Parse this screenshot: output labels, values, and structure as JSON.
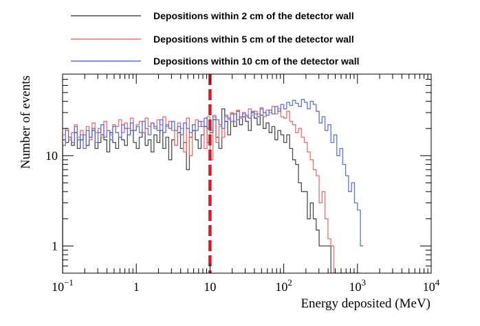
{
  "chart_data": {
    "type": "histogram",
    "title": "",
    "xlabel": "Energy deposited (MeV)",
    "ylabel": "Number of events",
    "xscale": "log",
    "yscale": "log",
    "xlim": [
      0.1,
      10000
    ],
    "ylim": [
      0.5,
      80
    ],
    "grid": false,
    "legend_position": "top",
    "x_ticks": [
      {
        "base": "10",
        "exp": "−1",
        "value": 0.1
      },
      {
        "base": "1",
        "exp": "",
        "value": 1
      },
      {
        "base": "10",
        "exp": "",
        "value": 10
      },
      {
        "base": "10",
        "exp": "2",
        "value": 100
      },
      {
        "base": "10",
        "exp": "3",
        "value": 1000
      },
      {
        "base": "10",
        "exp": "4",
        "value": 10000
      }
    ],
    "y_ticks": [
      {
        "label": "1",
        "value": 1
      },
      {
        "label": "10",
        "value": 10
      }
    ],
    "threshold_line": {
      "x": 10,
      "color": "#e8141e",
      "style": "dashed"
    },
    "bins_per_decade": 25,
    "bin_start_log10": -1,
    "series": [
      {
        "name": "Depositions within 2 cm of the detector wall",
        "color": "#4a4a4a",
        "counts": [
          15,
          14,
          16,
          13,
          18,
          12,
          15,
          17,
          13,
          16,
          19,
          12,
          14,
          17,
          15,
          11,
          18,
          14,
          12,
          16,
          15,
          13,
          17,
          19,
          14,
          12,
          16,
          18,
          13,
          15,
          11,
          17,
          14,
          19,
          12,
          16,
          9,
          15,
          13,
          18,
          12,
          14,
          7,
          16,
          19,
          15,
          12,
          17,
          21,
          14,
          18,
          25,
          16,
          12,
          33,
          24,
          17,
          29,
          21,
          31,
          22,
          27,
          24,
          19,
          30,
          26,
          22,
          28,
          20,
          23,
          18,
          21,
          15,
          19,
          17,
          14,
          17,
          12,
          9,
          8,
          5,
          4,
          4,
          2,
          3,
          2,
          1.5,
          1,
          1,
          1,
          1,
          0.5,
          0.5,
          0.5,
          0.5,
          0.5,
          0.5,
          0.5,
          0.5,
          0.5,
          0.5
        ]
      },
      {
        "name": "Depositions within 5 cm of the detector wall",
        "color": "#f06b6b",
        "counts": [
          17,
          20,
          15,
          18,
          22,
          16,
          19,
          17,
          21,
          15,
          23,
          18,
          20,
          16,
          24,
          19,
          17,
          22,
          21,
          25,
          18,
          23,
          20,
          26,
          19,
          22,
          24,
          18,
          26,
          21,
          23,
          20,
          25,
          22,
          27,
          21,
          24,
          19,
          13,
          23,
          20,
          11,
          26,
          10,
          22,
          25,
          21,
          24,
          12,
          27,
          9,
          28,
          14,
          21,
          16,
          27,
          25,
          30,
          24,
          32,
          26,
          29,
          27,
          33,
          28,
          31,
          29,
          34,
          27,
          32,
          30,
          35,
          29,
          33,
          27,
          26,
          31,
          24,
          22,
          18,
          20,
          16,
          14,
          11,
          9,
          7,
          6,
          3,
          4,
          2,
          1.2,
          1,
          0.5,
          0.5,
          0.5,
          0.5,
          0.5,
          0.5,
          0.5,
          0.5
        ]
      },
      {
        "name": "Depositions within 10 cm of the detector wall",
        "color": "#5b6fe6",
        "counts": [
          13,
          19,
          16,
          14,
          21,
          15,
          17,
          12,
          19,
          16,
          20,
          14,
          18,
          22,
          16,
          19,
          15,
          21,
          18,
          16,
          22,
          20,
          17,
          23,
          19,
          21,
          18,
          24,
          20,
          17,
          23,
          21,
          19,
          25,
          18,
          22,
          20,
          24,
          19,
          21,
          17,
          23,
          20,
          18,
          22,
          19,
          24,
          21,
          26,
          20,
          19,
          27,
          25,
          22,
          20,
          28,
          26,
          24,
          29,
          25,
          27,
          30,
          28,
          26,
          31,
          29,
          27,
          33,
          30,
          28,
          32,
          29,
          35,
          31,
          37,
          33,
          39,
          36,
          41,
          38,
          35,
          42,
          39,
          33,
          40,
          37,
          31,
          23,
          27,
          19,
          22,
          14,
          17,
          10,
          12,
          8,
          6,
          4,
          5,
          3,
          2.5,
          1
        ]
      }
    ]
  }
}
